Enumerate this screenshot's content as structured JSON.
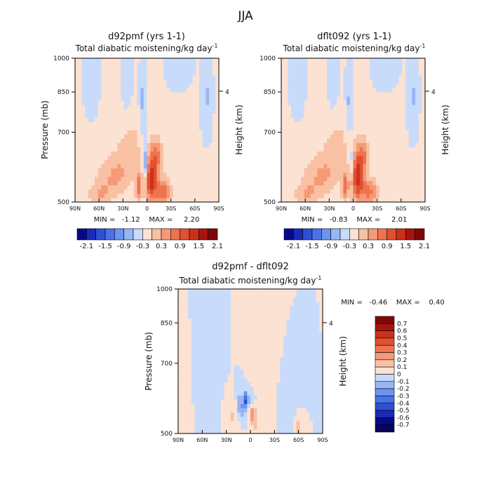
{
  "page": {
    "season_title": "JJA"
  },
  "chart_data": [
    {
      "type": "heatmap",
      "title": "d92pmf (yrs 1-1)",
      "subtitle": "Total diabatic moistening/kg day",
      "subtitle_superscript": "-1",
      "xlabel": "",
      "ylabel": "Pressure (mb)",
      "y2label": "Height (km)",
      "x_ticks": [
        "90N",
        "60N",
        "30N",
        "0",
        "30S",
        "60S",
        "90S"
      ],
      "x_range": [
        90,
        -90
      ],
      "y_ticks": [
        "500",
        "700",
        "850",
        "1000"
      ],
      "y_range": [
        1000,
        500
      ],
      "y2_ticks": [
        "4"
      ],
      "stats": "MIN =   -1.12    MAX =     2.20",
      "min": -1.12,
      "max": 2.2,
      "colorbar": {
        "orientation": "horizontal",
        "tick_labels": [
          "-2.1",
          "-1.5",
          "-0.9",
          "-0.3",
          "0.3",
          "0.9",
          "1.5",
          "2.1"
        ],
        "colors": [
          "#08088a",
          "#1a2ab8",
          "#2e4fd6",
          "#4a72e6",
          "#6d94ef",
          "#98b6f5",
          "#c8dbfb",
          "#fbe2d2",
          "#f9c0a4",
          "#f59a76",
          "#ee744f",
          "#e1502f",
          "#c9311c",
          "#a8140f",
          "#7f0707"
        ]
      },
      "features": [
        {
          "lat": -5,
          "p": 900,
          "amp": 1.6,
          "sx": 7,
          "sp": 95
        },
        {
          "lat": -20,
          "p": 950,
          "amp": 1.1,
          "sx": 10,
          "sp": 60
        },
        {
          "lat": -12,
          "p": 800,
          "amp": 0.9,
          "sx": 8,
          "sp": 70
        },
        {
          "lat": 10,
          "p": 930,
          "amp": 1.0,
          "sx": 4,
          "sp": 70
        },
        {
          "lat": 40,
          "p": 880,
          "amp": 0.6,
          "sx": 22,
          "sp": 90
        },
        {
          "lat": 60,
          "p": 960,
          "amp": 0.5,
          "sx": 15,
          "sp": 50
        },
        {
          "lat": 20,
          "p": 760,
          "amp": 0.35,
          "sx": 18,
          "sp": 110
        },
        {
          "lat": 2,
          "p": 830,
          "amp": -0.9,
          "sx": 3,
          "sp": 70
        },
        {
          "lat": 5,
          "p": 620,
          "amp": -0.45,
          "sx": 4,
          "sp": 110
        },
        {
          "lat": 25,
          "p": 560,
          "amp": -0.35,
          "sx": 6,
          "sp": 70
        },
        {
          "lat": 70,
          "p": 560,
          "amp": -0.3,
          "sx": 8,
          "sp": 80
        },
        {
          "lat": -75,
          "p": 600,
          "amp": -0.35,
          "sx": 6,
          "sp": 110
        },
        {
          "lat": -40,
          "p": 520,
          "amp": -0.25,
          "sx": 14,
          "sp": 50
        }
      ]
    },
    {
      "type": "heatmap",
      "title": "dflt092 (yrs 1-1)",
      "subtitle": "Total diabatic moistening/kg day",
      "subtitle_superscript": "-1",
      "xlabel": "",
      "ylabel": "",
      "y2label": "Height (km)",
      "x_ticks": [
        "90N",
        "60N",
        "30N",
        "0",
        "30S",
        "60S",
        "90S"
      ],
      "x_range": [
        90,
        -90
      ],
      "y_ticks": [
        "500",
        "700",
        "850",
        "1000"
      ],
      "y_range": [
        1000,
        500
      ],
      "y2_ticks": [
        "4"
      ],
      "stats": "MIN =   -0.83    MAX =     2.01",
      "min": -0.83,
      "max": 2.01,
      "colorbar": {
        "orientation": "horizontal",
        "tick_labels": [
          "-2.1",
          "-1.5",
          "-0.9",
          "-0.3",
          "0.3",
          "0.9",
          "1.5",
          "2.1"
        ],
        "colors": [
          "#08088a",
          "#1a2ab8",
          "#2e4fd6",
          "#4a72e6",
          "#6d94ef",
          "#98b6f5",
          "#c8dbfb",
          "#fbe2d2",
          "#f9c0a4",
          "#f59a76",
          "#ee744f",
          "#e1502f",
          "#c9311c",
          "#a8140f",
          "#7f0707"
        ]
      },
      "features": [
        {
          "lat": -5,
          "p": 890,
          "amp": 1.5,
          "sx": 8,
          "sp": 100
        },
        {
          "lat": -20,
          "p": 950,
          "amp": 1.0,
          "sx": 10,
          "sp": 60
        },
        {
          "lat": -12,
          "p": 800,
          "amp": 0.8,
          "sx": 8,
          "sp": 70
        },
        {
          "lat": 10,
          "p": 930,
          "amp": 0.9,
          "sx": 4,
          "sp": 70
        },
        {
          "lat": 40,
          "p": 880,
          "amp": 0.6,
          "sx": 22,
          "sp": 90
        },
        {
          "lat": 60,
          "p": 960,
          "amp": 0.5,
          "sx": 15,
          "sp": 50
        },
        {
          "lat": 20,
          "p": 760,
          "amp": 0.35,
          "sx": 18,
          "sp": 110
        },
        {
          "lat": 2,
          "p": 830,
          "amp": -0.6,
          "sx": 3,
          "sp": 70
        },
        {
          "lat": 5,
          "p": 620,
          "amp": -0.4,
          "sx": 4,
          "sp": 110
        },
        {
          "lat": 25,
          "p": 560,
          "amp": -0.35,
          "sx": 6,
          "sp": 70
        },
        {
          "lat": 70,
          "p": 560,
          "amp": -0.3,
          "sx": 8,
          "sp": 80
        },
        {
          "lat": -75,
          "p": 600,
          "amp": -0.35,
          "sx": 6,
          "sp": 110
        },
        {
          "lat": -40,
          "p": 520,
          "amp": -0.25,
          "sx": 14,
          "sp": 50
        }
      ]
    },
    {
      "type": "heatmap",
      "title": "d92pmf - dflt092",
      "subtitle": "Total diabatic moistening/kg day",
      "subtitle_superscript": "-1",
      "xlabel": "",
      "ylabel": "Pressure (mb)",
      "y2label": "Height (km)",
      "x_ticks": [
        "90N",
        "60N",
        "30N",
        "0",
        "30S",
        "60S",
        "90S"
      ],
      "x_range": [
        90,
        -90
      ],
      "y_ticks": [
        "500",
        "700",
        "850",
        "1000"
      ],
      "y_range": [
        1000,
        500
      ],
      "y2_ticks": [
        "4"
      ],
      "stats": "MIN =   -0.46    MAX =    0.40",
      "min": -0.46,
      "max": 0.4,
      "colorbar": {
        "orientation": "vertical",
        "tick_labels": [
          "0.7",
          "0.6",
          "0.5",
          "0.4",
          "0.3",
          "0.2",
          "0.1",
          "0",
          "-0.1",
          "-0.2",
          "-0.3",
          "-0.4",
          "-0.5",
          "-0.6",
          "-0.7"
        ],
        "colors": [
          "#7f0707",
          "#a8140f",
          "#c9311c",
          "#e1502f",
          "#ee744f",
          "#f59a76",
          "#f9c0a4",
          "#fbe2d2",
          "#c8dbfb",
          "#98b6f5",
          "#6d94ef",
          "#4a72e6",
          "#2e4fd6",
          "#1a2ab8",
          "#08088a",
          "#05055e"
        ]
      },
      "features": [
        {
          "lat": 5,
          "p": 850,
          "amp": -0.42,
          "sx": 3,
          "sp": 35
        },
        {
          "lat": 12,
          "p": 880,
          "amp": -0.22,
          "sx": 5,
          "sp": 60
        },
        {
          "lat": -3,
          "p": 860,
          "amp": -0.18,
          "sx": 3,
          "sp": 40
        },
        {
          "lat": -2,
          "p": 900,
          "amp": 0.22,
          "sx": 3,
          "sp": 40
        },
        {
          "lat": 20,
          "p": 920,
          "amp": 0.12,
          "sx": 8,
          "sp": 60
        },
        {
          "lat": -5,
          "p": 930,
          "amp": 0.15,
          "sx": 4,
          "sp": 60
        },
        {
          "lat": -15,
          "p": 700,
          "amp": 0.08,
          "sx": 12,
          "sp": 200
        },
        {
          "lat": 55,
          "p": 780,
          "amp": -0.07,
          "sx": 10,
          "sp": 200
        },
        {
          "lat": -45,
          "p": 900,
          "amp": -0.06,
          "sx": 8,
          "sp": 120
        },
        {
          "lat": -60,
          "p": 975,
          "amp": 0.18,
          "sx": 4,
          "sp": 40
        },
        {
          "lat": 80,
          "p": 900,
          "amp": 0.07,
          "sx": 5,
          "sp": 150
        }
      ]
    }
  ]
}
